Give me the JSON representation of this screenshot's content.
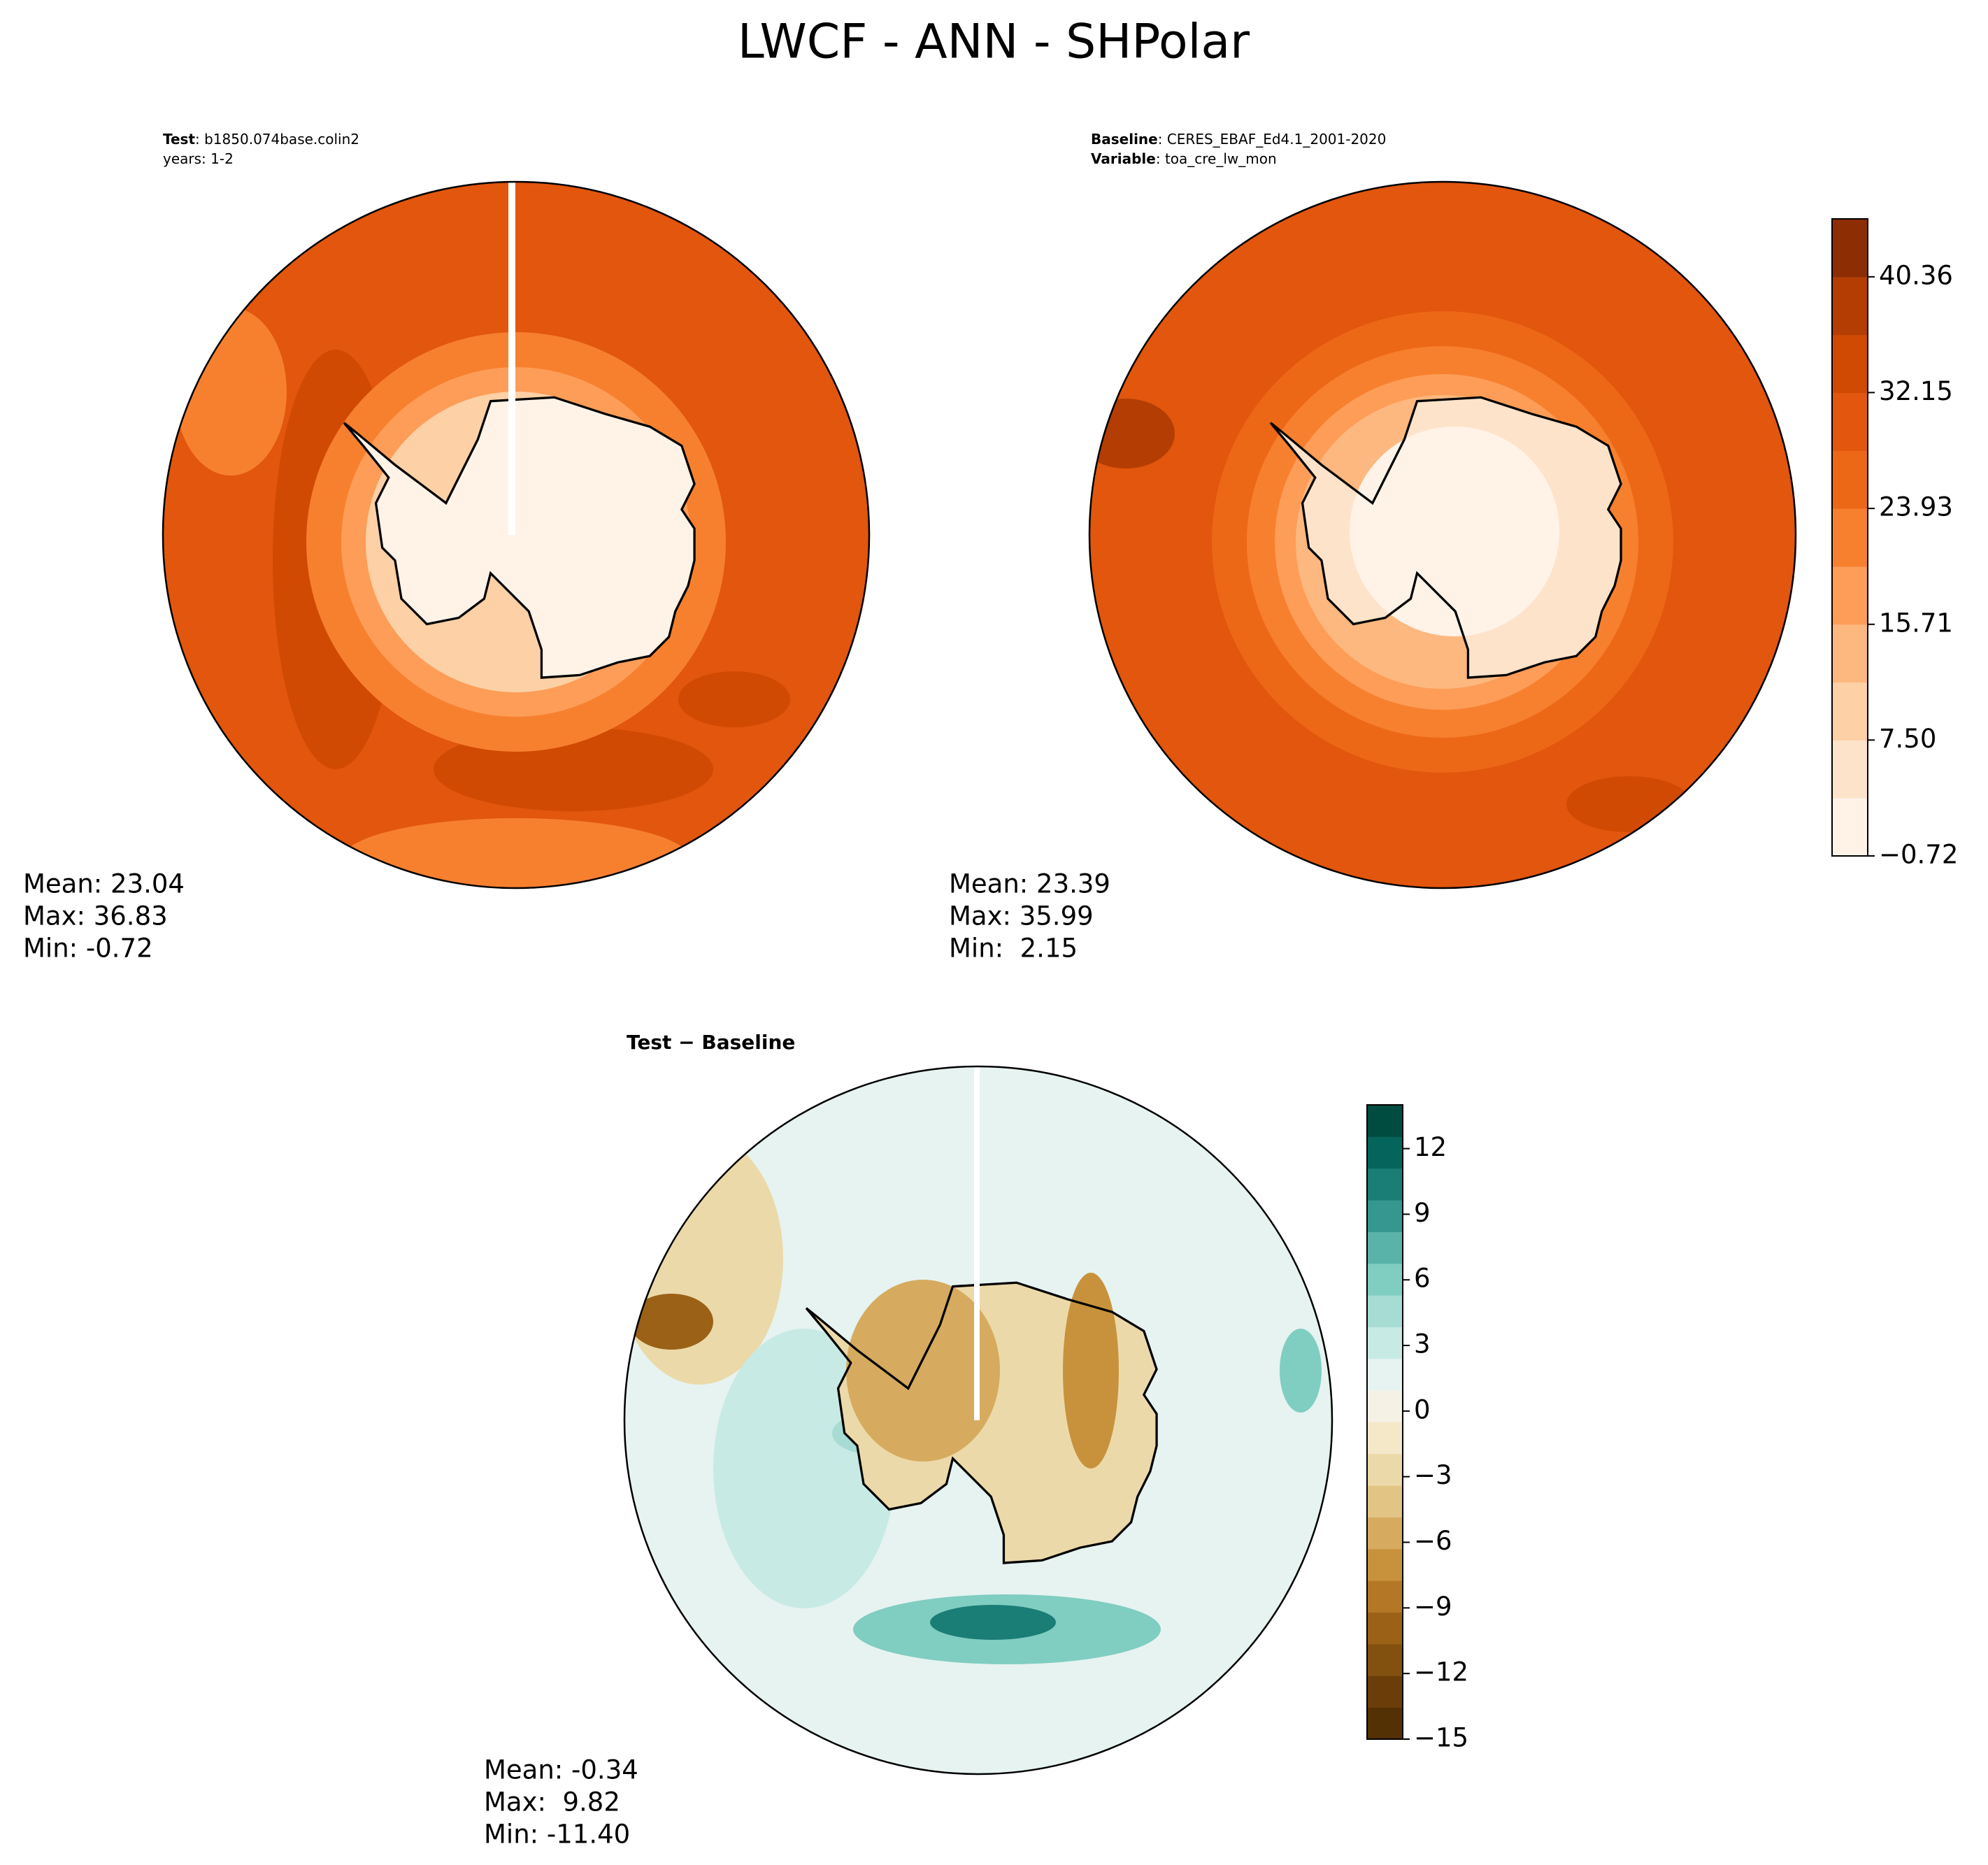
{
  "title": "LWCF - ANN - SHPolar",
  "panels": [
    {
      "header": [
        {
          "key": "Test",
          "text": ": b1850.074base.colin2"
        },
        {
          "text": "years: 1-2"
        }
      ],
      "stats": [
        "Mean: 23.04",
        "Max: 36.83",
        "Min: -0.72"
      ]
    },
    {
      "header": [
        {
          "key": "Baseline",
          "text": ": CERES_EBAF_Ed4.1_2001-2020"
        },
        {
          "key": "Variable",
          "text": ": toa_cre_lw_mon"
        }
      ],
      "stats": [
        "Mean: 23.39",
        "Max: 35.99",
        "Min:  2.15"
      ]
    },
    {
      "header": [
        {
          "key": "Test − Baseline"
        }
      ],
      "stats": [
        "Mean: -0.34",
        "Max:  9.82",
        "Min: -11.40"
      ]
    }
  ],
  "colorbars": [
    {
      "lim": [
        -0.72,
        44.47
      ],
      "ticks": [
        {
          "value": -0.72,
          "label": "−0.72"
        },
        {
          "value": 7.5,
          "label": "7.50"
        },
        15.71,
        23.93,
        32.15,
        40.36
      ],
      "colors": [
        "#fff3e8",
        "#fee3cb",
        "#fdd0a5",
        "#fdb87f",
        "#fd9d58",
        "#f7802f",
        "#ec6817",
        "#e2560d",
        "#d04a04",
        "#b43d03",
        "#8c2d04"
      ]
    },
    {
      "lim": [
        -15,
        14
      ],
      "ticks": [
        {
          "value": -15,
          "label": "−15"
        },
        {
          "value": -12,
          "label": "−12"
        },
        {
          "value": -9,
          "label": "−9"
        },
        {
          "value": -6,
          "label": "−6"
        },
        {
          "value": -3,
          "label": "−3"
        },
        0,
        3,
        6,
        9,
        12
      ],
      "colors": [
        "#543005",
        "#6a3d09",
        "#82500f",
        "#9a6117",
        "#b47726",
        "#c8923d",
        "#d6ab5f",
        "#e2c485",
        "#ecd9a9",
        "#f4e8c9",
        "#f5f1e4",
        "#e6f3f1",
        "#c8eae4",
        "#a6dcd3",
        "#80cdc1",
        "#5ab3a8",
        "#35978f",
        "#1a7d76",
        "#05655c",
        "#004c40"
      ]
    }
  ]
}
